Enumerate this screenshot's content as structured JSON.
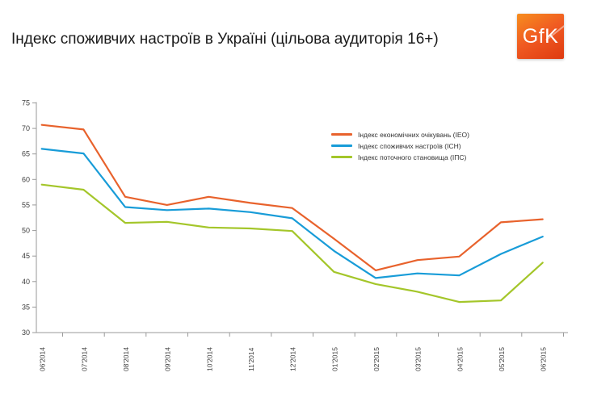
{
  "page": {
    "title": "Індекс споживчих настроїв в Україні (цільова аудиторія 16+)"
  },
  "logo": {
    "text": "GfK"
  },
  "colors": {
    "series_orange": "#e8622c",
    "series_blue": "#189cd8",
    "series_green": "#a4c62a",
    "axis": "#9a9a9a",
    "tick_label": "#3c3c3c",
    "logo_orange_top": "#f78e1e",
    "logo_orange_bottom": "#de3a10"
  },
  "chart_data": {
    "type": "line",
    "title": "Індекс споживчих настроїв в Україні (цільова аудиторія 16+)",
    "xlabel": "",
    "ylabel": "",
    "ylim": [
      30,
      75
    ],
    "ytick_step": 5,
    "grid": false,
    "legend_position": "inside-top-right",
    "categories": [
      "06'2014",
      "07'2014",
      "08'2014",
      "09'2014",
      "10'2014",
      "11'2014",
      "12'2014",
      "01'2015",
      "02'2015",
      "03'2015",
      "04'2015",
      "05'2015",
      "06'2015"
    ],
    "series": [
      {
        "name": "Індекс економічних очікувань (ІЕО)",
        "color": "#e8622c",
        "values": [
          70.7,
          69.8,
          56.6,
          55.0,
          56.6,
          55.4,
          54.4,
          48.4,
          42.2,
          44.2,
          44.9,
          51.6,
          52.2
        ]
      },
      {
        "name": "Індекс споживчих настроїв (ІСН)",
        "color": "#189cd8",
        "values": [
          66.0,
          65.1,
          54.6,
          54.0,
          54.3,
          53.6,
          52.4,
          46.0,
          40.7,
          41.6,
          41.2,
          45.4,
          48.8
        ]
      },
      {
        "name": "Індекс поточного становища (ІПС)",
        "color": "#a4c62a",
        "values": [
          59.0,
          58.0,
          51.5,
          51.7,
          50.6,
          50.4,
          49.9,
          41.9,
          39.5,
          38.0,
          36.0,
          36.3,
          43.7
        ]
      }
    ]
  }
}
